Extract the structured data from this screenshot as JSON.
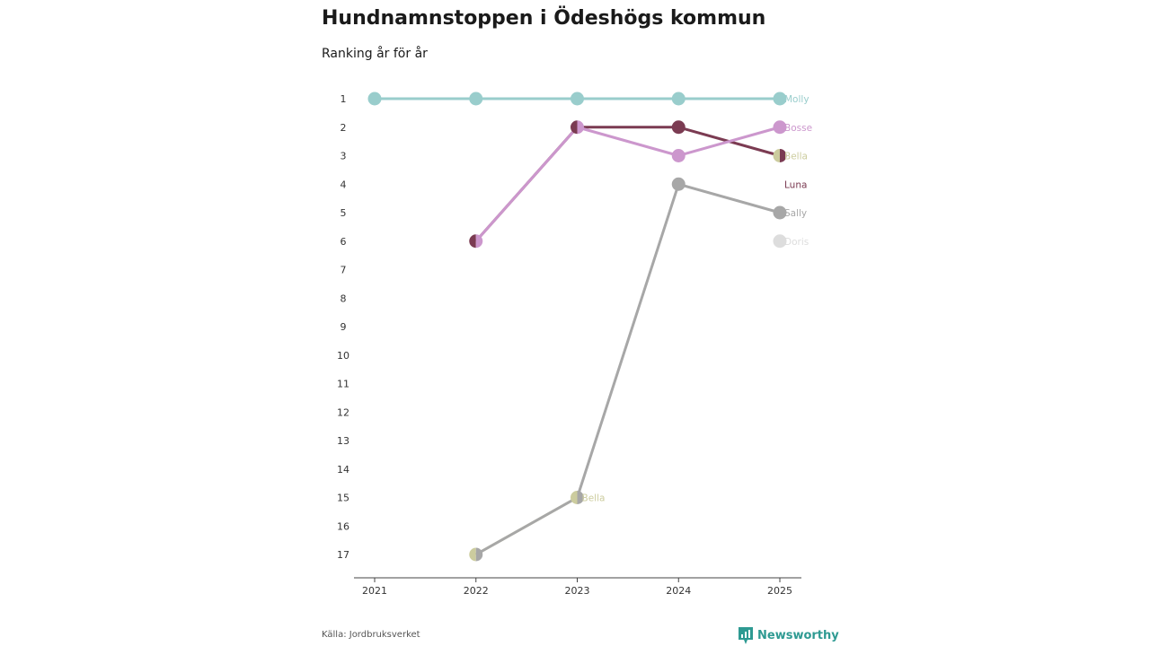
{
  "colors": {
    "Molly": "#99cdcc",
    "Bosse": "#cc97cd",
    "Luna": "#7b3b52",
    "Sally": "#a7a7a7",
    "Bella": "#cccc9e",
    "Doris": "#dddddd",
    "axis": "#444444",
    "brand": "#2e9a92"
  },
  "header": {
    "title": "Hundnamnstoppen i Ödeshögs kommun",
    "subtitle": "Ranking år för år"
  },
  "footer": {
    "source": "Källa: Jordbruksverket",
    "brand": "Newsworthy",
    "brand_icon": "newsworthy-logo-icon"
  },
  "chart_data": {
    "type": "line",
    "title": "Hundnamnstoppen i Ödeshögs kommun",
    "subtitle": "Ranking år för år",
    "x": [
      "2021",
      "2022",
      "2023",
      "2024",
      "2025"
    ],
    "yticks": [
      "1",
      "2",
      "3",
      "4",
      "5",
      "6",
      "7",
      "8",
      "9",
      "10",
      "11",
      "12",
      "13",
      "14",
      "15",
      "16",
      "17"
    ],
    "ylim": [
      1,
      17
    ],
    "y_inverted": true,
    "grid": false,
    "series": [
      {
        "name": "Molly",
        "values": [
          1,
          1,
          1,
          1,
          1
        ]
      },
      {
        "name": "Bosse",
        "values": [
          null,
          6,
          2,
          3,
          2
        ]
      },
      {
        "name": "Luna",
        "values": [
          null,
          6,
          2,
          2,
          3
        ]
      },
      {
        "name": "Sally",
        "values": [
          null,
          17,
          15,
          4,
          5
        ]
      },
      {
        "name": "Bella",
        "values": [
          null,
          17,
          15,
          null,
          3
        ]
      },
      {
        "name": "Doris",
        "values": [
          null,
          null,
          null,
          null,
          6
        ]
      }
    ],
    "inline_labels": [
      {
        "text": "Molly",
        "series": "Molly",
        "x": "2025",
        "y": 1
      },
      {
        "text": "Bosse",
        "series": "Bosse",
        "x": "2025",
        "y": 2
      },
      {
        "text": "Bella",
        "series": "Bella",
        "x": "2025",
        "y": 3
      },
      {
        "text": "Luna",
        "series": "Luna",
        "x": "2025",
        "y": 4
      },
      {
        "text": "Sally",
        "series": "Sally",
        "x": "2025",
        "y": 5
      },
      {
        "text": "Doris",
        "series": "Doris",
        "x": "2025",
        "y": 6
      },
      {
        "text": "Bella",
        "series": "Bella",
        "x": "2023",
        "y": 15
      }
    ]
  }
}
